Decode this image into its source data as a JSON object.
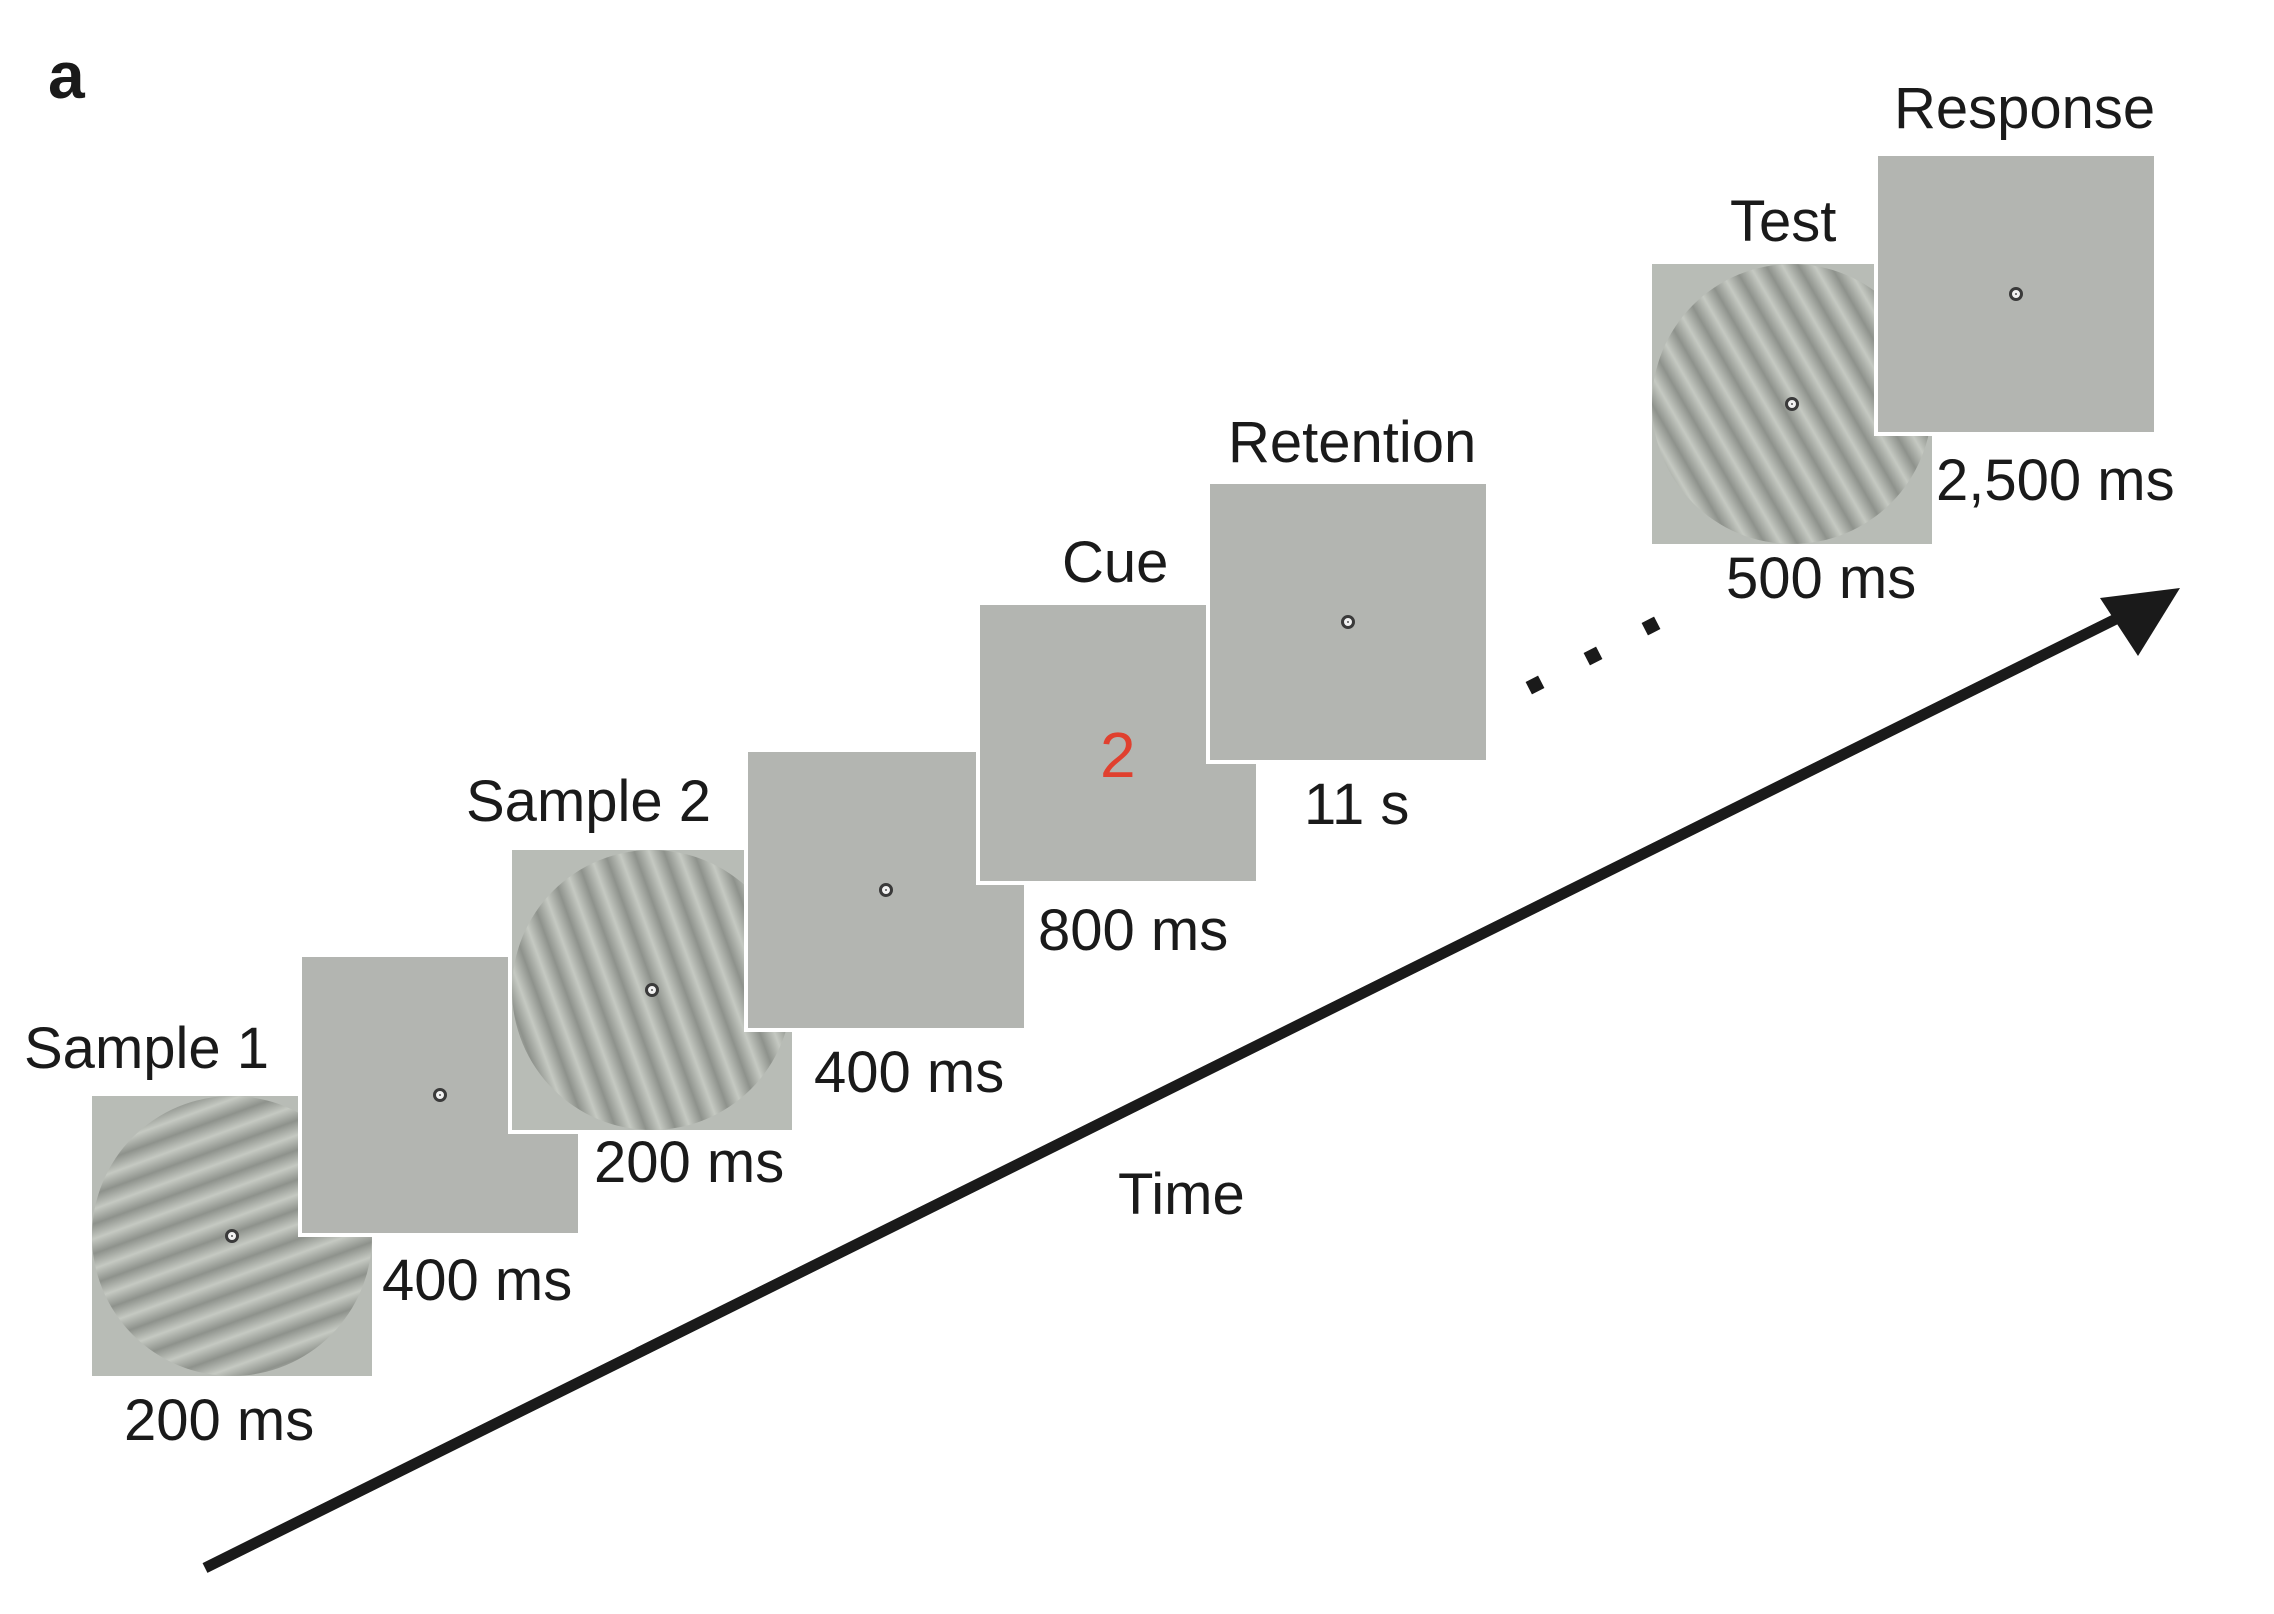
{
  "panel_letter": "a",
  "axis_label": "Time",
  "cue_number": "2",
  "colors": {
    "cue": "#e0402f",
    "screen": "#b3b5b1",
    "arrow": "#1a1a1a"
  },
  "stages": [
    {
      "id": "sample1",
      "label": "Sample 1",
      "duration": "200 ms"
    },
    {
      "id": "delay1",
      "label": "",
      "duration": "400 ms"
    },
    {
      "id": "sample2",
      "label": "Sample 2",
      "duration": "200 ms"
    },
    {
      "id": "delay2",
      "label": "",
      "duration": "400 ms"
    },
    {
      "id": "cue",
      "label": "Cue",
      "duration": "800 ms"
    },
    {
      "id": "retention",
      "label": "Retention",
      "duration": "11 s"
    },
    {
      "id": "test",
      "label": "Test",
      "duration": "500 ms"
    },
    {
      "id": "response",
      "label": "Response",
      "duration": "2,500 ms"
    }
  ]
}
